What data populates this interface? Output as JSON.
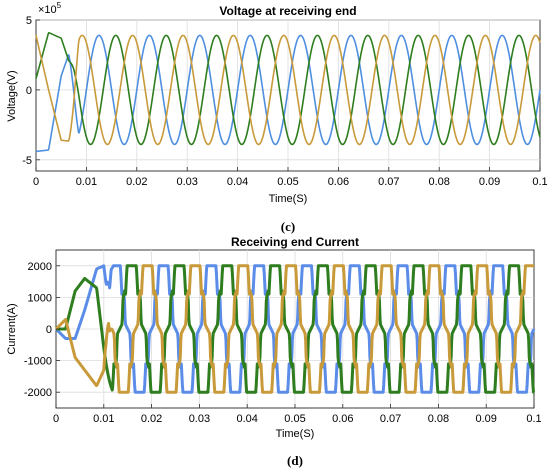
{
  "figure_captions": {
    "c": "(c)",
    "d": "(d)"
  },
  "chart_data": [
    {
      "type": "line",
      "title": "Voltage at receiving end",
      "xlabel": "Time(S)",
      "ylabel": "Voltage(V)",
      "exponent_label": "×10",
      "exponent_power": "5",
      "xlim": [
        0,
        0.1
      ],
      "ylim": [
        -5.8,
        5
      ],
      "y_scale": 100000,
      "grid": true,
      "xticks": [
        "0",
        "0.01",
        "0.02",
        "0.03",
        "0.04",
        "0.05",
        "0.06",
        "0.07",
        "0.08",
        "0.09",
        "0.1"
      ],
      "yticks": [
        {
          "value": -5,
          "label": "-5"
        },
        {
          "value": 0,
          "label": "0"
        },
        {
          "value": 5,
          "label": "5"
        }
      ],
      "waveform": {
        "kind": "sine",
        "frequency_hz": 100,
        "amplitude": 3.9,
        "startup_transient_until": 0.0085
      },
      "series": [
        {
          "color": "#4f8fe0",
          "phase_deg": 0,
          "x": [
            0,
            0.0025,
            0.005,
            0.0075,
            0.01,
            0.0125,
            0.015,
            0.0175,
            0.02,
            0.0225,
            0.025
          ],
          "y": [
            -4.4,
            -4.3,
            1.0,
            3.6,
            3.9,
            0.0,
            -3.9,
            0.0,
            3.9,
            0.0,
            -3.9
          ]
        },
        {
          "color": "#2e7d1e",
          "phase_deg": -120,
          "x": [
            0,
            0.0025,
            0.005,
            0.0075,
            0.01,
            0.0125,
            0.015,
            0.0175,
            0.02,
            0.0225,
            0.025
          ],
          "y": [
            0.8,
            4.1,
            3.7,
            1.0,
            -3.4,
            -3.7,
            3.4,
            1.0,
            -3.4,
            -3.4,
            1.0
          ]
        },
        {
          "color": "#c89a3a",
          "phase_deg": 120,
          "x": [
            0,
            0.0025,
            0.005,
            0.0075,
            0.01,
            0.0125,
            0.015,
            0.0175,
            0.02,
            0.0225,
            0.025
          ],
          "y": [
            3.9,
            0.0,
            -3.6,
            -3.7,
            0.5,
            3.7,
            0.5,
            -3.4,
            -0.5,
            3.4,
            3.4
          ]
        }
      ]
    },
    {
      "type": "line",
      "title": "Receiving end Current",
      "xlabel": "Time(S)",
      "ylabel": "Current(A)",
      "xlim": [
        0,
        0.1
      ],
      "ylim": [
        -2500,
        2500
      ],
      "grid": true,
      "xticks": [
        "0",
        "0.01",
        "0.02",
        "0.03",
        "0.04",
        "0.05",
        "0.06",
        "0.07",
        "0.08",
        "0.09",
        "0.1"
      ],
      "yticks": [
        {
          "value": -2000,
          "label": "-2000"
        },
        {
          "value": -1000,
          "label": "-1000"
        },
        {
          "value": 0,
          "label": "0"
        },
        {
          "value": 1000,
          "label": "1000"
        },
        {
          "value": 2000,
          "label": "2000"
        }
      ],
      "waveform": {
        "kind": "stepped",
        "frequency_hz": 100,
        "levels": [
          2000,
          1000,
          0
        ],
        "startup_transient_until": 0.012
      },
      "series": [
        {
          "color": "#5b8de8",
          "phase_deg": 0,
          "x": [
            0,
            0.002,
            0.004,
            0.006,
            0.0085,
            0.01,
            0.0125,
            0.015,
            0.0175,
            0.02
          ],
          "y": [
            0,
            -300,
            -300,
            600,
            1900,
            2000,
            1200,
            0,
            -1300,
            -2000
          ]
        },
        {
          "color": "#2e7d1e",
          "phase_deg": -120,
          "x": [
            0,
            0.002,
            0.004,
            0.006,
            0.0085,
            0.01,
            0.0125,
            0.015,
            0.0175,
            0.02
          ],
          "y": [
            0,
            0,
            1200,
            1600,
            1300,
            -600,
            -1700,
            -2000,
            -1700,
            1200
          ]
        },
        {
          "color": "#c89a3a",
          "phase_deg": 120,
          "x": [
            0,
            0.002,
            0.004,
            0.006,
            0.0085,
            0.01,
            0.0125,
            0.015,
            0.0175,
            0.02
          ],
          "y": [
            0,
            300,
            -900,
            -1300,
            -1800,
            -1300,
            600,
            2000,
            1400,
            1100
          ]
        }
      ]
    }
  ]
}
